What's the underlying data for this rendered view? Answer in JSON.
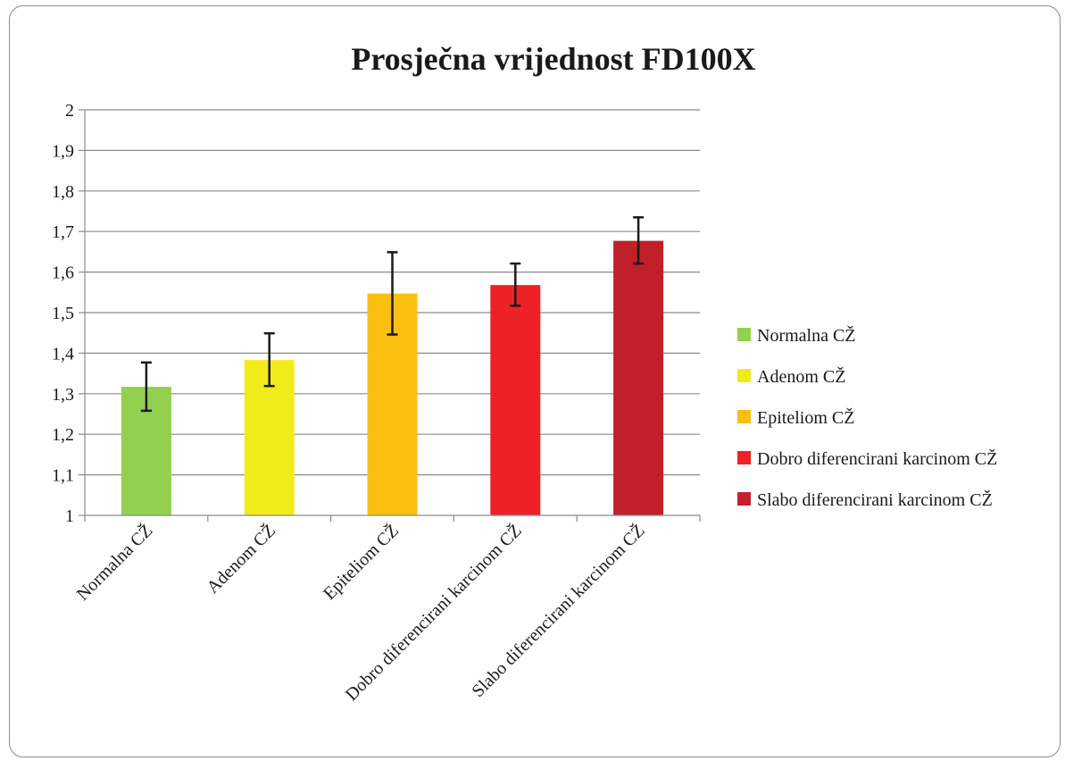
{
  "chart_data": {
    "type": "bar",
    "title": "Prosječna vrijednost FD100X",
    "xlabel": "",
    "ylabel": "",
    "ylim": [
      1,
      2
    ],
    "yticks": [
      "1",
      "1,1",
      "1,2",
      "1,3",
      "1,4",
      "1,5",
      "1,6",
      "1,7",
      "1,8",
      "1,9",
      "2"
    ],
    "categories": [
      "Normalna CŽ",
      "Adenom CŽ",
      "Epiteliom CŽ",
      "Dobro diferencirani karcinom CŽ",
      "Slabo diferencirani karcinom CŽ"
    ],
    "values": [
      1.317,
      1.383,
      1.547,
      1.568,
      1.677
    ],
    "error_low": [
      1.258,
      1.319,
      1.446,
      1.517,
      1.621
    ],
    "error_high": [
      1.377,
      1.449,
      1.649,
      1.621,
      1.735
    ],
    "colors": [
      "#92d050",
      "#f2eb1a",
      "#fbbf10",
      "#ee2127",
      "#c0202a"
    ],
    "legend": {
      "position": "right",
      "entries": [
        "Normalna CŽ",
        "Adenom CŽ",
        "Epiteliom CŽ",
        "Dobro diferencirani karcinom CŽ",
        "Slabo diferencirani karcinom CŽ"
      ]
    },
    "grid": true
  }
}
